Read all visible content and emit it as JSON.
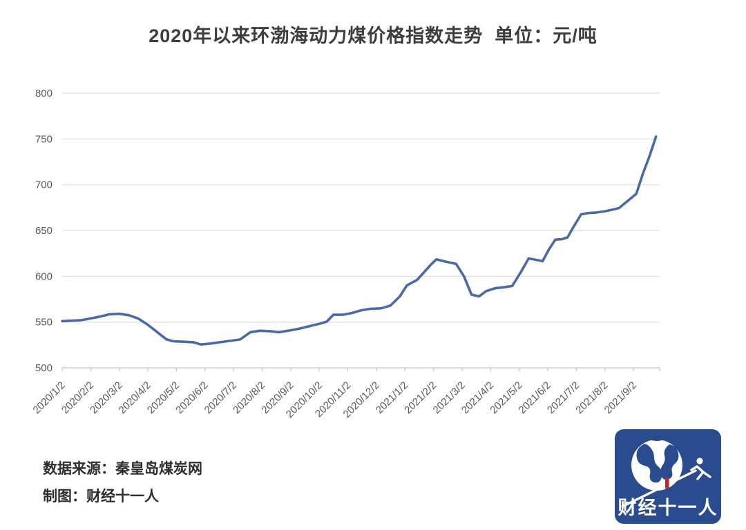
{
  "title": "2020年以来环渤海动力煤价格指数走势  单位：元/吨",
  "source": {
    "line1": "数据来源：秦皇岛煤炭网",
    "line2": "制图：财经十一人"
  },
  "logo": {
    "text": "财经十一人",
    "bg_color": "#2b4b8f",
    "accent_color": "#b62b31",
    "foreground_color": "#ffffff"
  },
  "colors": {
    "line": "#4a69a8",
    "gridline": "#dedede",
    "axis": "#c4c4c4",
    "tick_label": "#595959",
    "title_text": "#3d3d3d"
  },
  "chart_data": {
    "type": "line",
    "title": "2020年以来环渤海动力煤价格指数走势",
    "unit_label": "单位：元/吨",
    "ylabel": "",
    "xlabel": "",
    "ylim": [
      500,
      800
    ],
    "y_ticks": [
      800,
      750,
      700,
      650,
      600,
      550,
      500
    ],
    "grid": true,
    "legend_position": "none",
    "x_tick_labels": [
      "2020/1/2",
      "2020/2/2",
      "2020/3/2",
      "2020/4/2",
      "2020/5/2",
      "2020/6/2",
      "2020/7/2",
      "2020/8/2",
      "2020/9/2",
      "2020/10/2",
      "2020/11/2",
      "2020/12/2",
      "2021/1/2",
      "2021/2/2",
      "2021/3/2",
      "2021/4/2",
      "2021/5/2",
      "2021/6/2",
      "2021/7/2",
      "2021/8/2",
      "2021/9/2"
    ],
    "series": [
      {
        "name": "环渤海动力煤价格指数",
        "points": [
          {
            "d": "2020/1/2",
            "v": 551
          },
          {
            "d": "2020/1/12",
            "v": 551.5
          },
          {
            "d": "2020/1/22",
            "v": 552
          },
          {
            "d": "2020/2/2",
            "v": 554
          },
          {
            "d": "2020/2/12",
            "v": 556
          },
          {
            "d": "2020/2/22",
            "v": 558.5
          },
          {
            "d": "2020/3/2",
            "v": 559
          },
          {
            "d": "2020/3/12",
            "v": 557.5
          },
          {
            "d": "2020/3/22",
            "v": 554
          },
          {
            "d": "2020/4/2",
            "v": 547
          },
          {
            "d": "2020/4/12",
            "v": 539
          },
          {
            "d": "2020/4/22",
            "v": 531
          },
          {
            "d": "2020/4/29",
            "v": 529
          },
          {
            "d": "2020/5/10",
            "v": 528.5
          },
          {
            "d": "2020/5/20",
            "v": 528
          },
          {
            "d": "2020/5/28",
            "v": 525.5
          },
          {
            "d": "2020/6/8",
            "v": 526.5
          },
          {
            "d": "2020/6/18",
            "v": 528
          },
          {
            "d": "2020/6/29",
            "v": 529.5
          },
          {
            "d": "2020/7/9",
            "v": 531
          },
          {
            "d": "2020/7/20",
            "v": 539
          },
          {
            "d": "2020/7/30",
            "v": 540.5
          },
          {
            "d": "2020/8/10",
            "v": 540
          },
          {
            "d": "2020/8/20",
            "v": 539
          },
          {
            "d": "2020/9/2",
            "v": 541
          },
          {
            "d": "2020/9/12",
            "v": 543
          },
          {
            "d": "2020/9/22",
            "v": 545.5
          },
          {
            "d": "2020/10/2",
            "v": 548
          },
          {
            "d": "2020/10/10",
            "v": 550.5
          },
          {
            "d": "2020/10/17",
            "v": 558
          },
          {
            "d": "2020/10/27",
            "v": 558
          },
          {
            "d": "2020/11/7",
            "v": 560
          },
          {
            "d": "2020/11/17",
            "v": 563
          },
          {
            "d": "2020/11/27",
            "v": 564.5
          },
          {
            "d": "2020/12/7",
            "v": 565
          },
          {
            "d": "2020/12/17",
            "v": 568
          },
          {
            "d": "2020/12/27",
            "v": 578
          },
          {
            "d": "2021/1/4",
            "v": 590
          },
          {
            "d": "2021/1/15",
            "v": 596
          },
          {
            "d": "2021/1/22",
            "v": 604
          },
          {
            "d": "2021/1/29",
            "v": 612
          },
          {
            "d": "2021/2/5",
            "v": 618.5
          },
          {
            "d": "2021/2/15",
            "v": 616
          },
          {
            "d": "2021/2/26",
            "v": 613.5
          },
          {
            "d": "2021/3/4",
            "v": 600
          },
          {
            "d": "2021/3/12",
            "v": 580
          },
          {
            "d": "2021/3/20",
            "v": 578
          },
          {
            "d": "2021/3/28",
            "v": 584
          },
          {
            "d": "2021/4/7",
            "v": 587
          },
          {
            "d": "2021/4/16",
            "v": 588
          },
          {
            "d": "2021/4/25",
            "v": 589.5
          },
          {
            "d": "2021/5/4",
            "v": 605
          },
          {
            "d": "2021/5/12",
            "v": 619.5
          },
          {
            "d": "2021/5/20",
            "v": 618
          },
          {
            "d": "2021/5/27",
            "v": 616.5
          },
          {
            "d": "2021/6/3",
            "v": 629
          },
          {
            "d": "2021/6/10",
            "v": 640
          },
          {
            "d": "2021/6/17",
            "v": 640.5
          },
          {
            "d": "2021/6/23",
            "v": 642.5
          },
          {
            "d": "2021/6/30",
            "v": 655
          },
          {
            "d": "2021/7/7",
            "v": 667.5
          },
          {
            "d": "2021/7/14",
            "v": 669
          },
          {
            "d": "2021/7/22",
            "v": 669.5
          },
          {
            "d": "2021/8/2",
            "v": 671
          },
          {
            "d": "2021/8/11",
            "v": 673
          },
          {
            "d": "2021/8/17",
            "v": 674.5
          },
          {
            "d": "2021/8/26",
            "v": 682
          },
          {
            "d": "2021/9/5",
            "v": 690
          },
          {
            "d": "2021/9/12",
            "v": 712
          },
          {
            "d": "2021/9/19",
            "v": 731
          },
          {
            "d": "2021/9/26",
            "v": 752.5
          }
        ]
      }
    ]
  }
}
